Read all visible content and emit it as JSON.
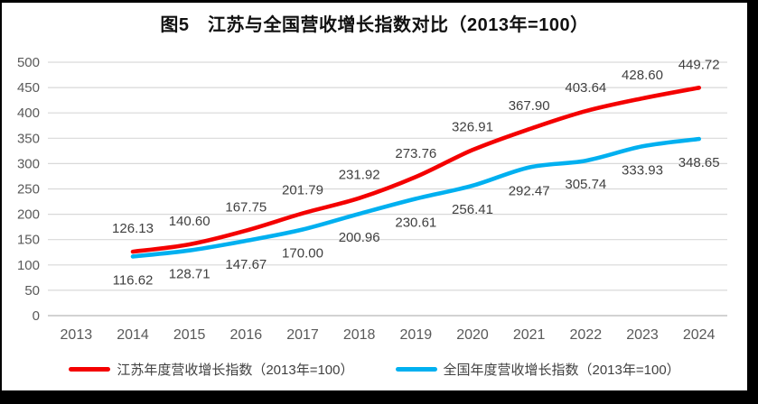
{
  "chart_data": {
    "type": "line",
    "title": "图5　江苏与全国营收增长指数对比（2013年=100）",
    "categories": [
      "2013",
      "2014",
      "2015",
      "2016",
      "2017",
      "2018",
      "2019",
      "2020",
      "2021",
      "2022",
      "2023",
      "2024"
    ],
    "series": [
      {
        "name": "江苏年度营收增长指数（2013年=100）",
        "color": "#f40000",
        "start_index": 1,
        "values": [
          126.13,
          140.6,
          167.75,
          201.79,
          231.92,
          273.76,
          326.91,
          367.9,
          403.64,
          428.6,
          449.72
        ],
        "labels": [
          "126.13",
          "140.60",
          "167.75",
          "201.79",
          "231.92",
          "273.76",
          "326.91",
          "367.90",
          "403.64",
          "428.60",
          "449.72"
        ],
        "label_side": "above"
      },
      {
        "name": "全国年度营收增长指数（2013年=100）",
        "color": "#00b0f0",
        "start_index": 1,
        "values": [
          116.62,
          128.71,
          147.67,
          170.0,
          200.96,
          230.61,
          256.41,
          292.47,
          305.74,
          333.93,
          348.65
        ],
        "labels": [
          "116.62",
          "128.71",
          "147.67",
          "170.00",
          "200.96",
          "230.61",
          "256.41",
          "292.47",
          "305.74",
          "333.93",
          "348.65"
        ],
        "label_side": "below"
      }
    ],
    "ylim": [
      0,
      500
    ],
    "ytick_step": 50,
    "yticks": [
      "0",
      "50",
      "100",
      "150",
      "200",
      "250",
      "300",
      "350",
      "400",
      "450",
      "500"
    ],
    "grid": "horizontal",
    "legend_position": "bottom",
    "gridline_color": "#d9d9d9",
    "axis_line_color": "#c3c3c3",
    "axis_text_color": "#595959",
    "data_label_color": "#3f3f3f"
  }
}
